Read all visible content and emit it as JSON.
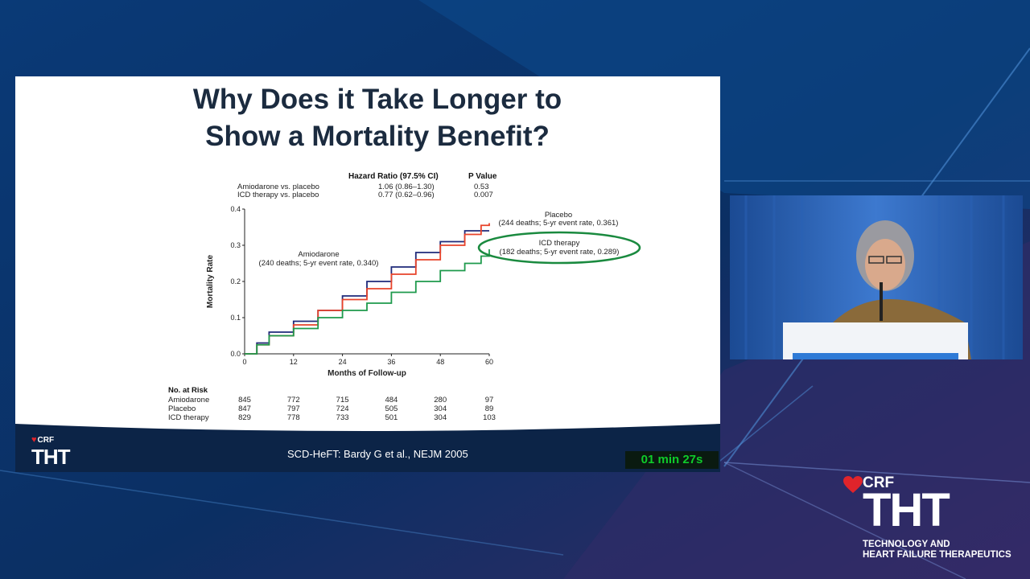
{
  "slide": {
    "title_line1": "Why Does it Take Longer to",
    "title_line2": "Show a Mortality Benefit?",
    "citation": "SCD-HeFT: Bardy G et al., NEJM 2005",
    "timer": "01 min 27s"
  },
  "branding": {
    "small_crf": "CRF",
    "small_tht": "THT",
    "big_crf": "CRF",
    "big_tht": "THT",
    "big_line1": "TECHNOLOGY AND",
    "big_line2": "HEART FAILURE THERAPEUTICS",
    "accent_color": "#e0242b"
  },
  "hazard_table": {
    "col1_header": "Hazard Ratio (97.5% CI)",
    "col2_header": "P Value",
    "rows": [
      {
        "label": "Amiodarone vs. placebo",
        "hr": "1.06 (0.86–1.30)",
        "p": "0.53"
      },
      {
        "label": "ICD therapy vs. placebo",
        "hr": "0.77 (0.62–0.96)",
        "p": "0.007"
      }
    ]
  },
  "chart_data": {
    "type": "line",
    "xlabel": "Months of Follow-up",
    "ylabel": "Mortality Rate",
    "xlim": [
      0,
      60
    ],
    "ylim": [
      0,
      0.4
    ],
    "xticks": [
      "0",
      "12",
      "24",
      "36",
      "48",
      "60"
    ],
    "yticks": [
      "0.0",
      "0.1",
      "0.2",
      "0.3",
      "0.4"
    ],
    "grid": false,
    "series": [
      {
        "name": "Amiodarone",
        "label_line1": "Amiodarone",
        "label_line2": "(240 deaths; 5-yr event rate, 0.340)",
        "color": "#1f2a7a",
        "x": [
          0,
          3,
          6,
          12,
          18,
          24,
          30,
          36,
          42,
          48,
          54,
          60
        ],
        "y": [
          0,
          0.03,
          0.06,
          0.09,
          0.12,
          0.16,
          0.2,
          0.24,
          0.28,
          0.31,
          0.34,
          0.34
        ]
      },
      {
        "name": "Placebo",
        "label_line1": "Placebo",
        "label_line2": "(244 deaths; 5-yr event rate, 0.361)",
        "color": "#e8432a",
        "x": [
          0,
          3,
          6,
          12,
          18,
          24,
          30,
          36,
          42,
          48,
          54,
          58,
          60
        ],
        "y": [
          0,
          0.025,
          0.05,
          0.08,
          0.12,
          0.15,
          0.18,
          0.22,
          0.26,
          0.3,
          0.33,
          0.355,
          0.361
        ]
      },
      {
        "name": "ICD therapy",
        "label_line1": "ICD therapy",
        "label_line2": "(182 deaths; 5-yr event rate, 0.289)",
        "color": "#1e9a4c",
        "x": [
          0,
          3,
          6,
          12,
          18,
          24,
          30,
          36,
          42,
          48,
          54,
          58,
          60
        ],
        "y": [
          0,
          0.025,
          0.05,
          0.07,
          0.1,
          0.12,
          0.14,
          0.17,
          0.2,
          0.23,
          0.25,
          0.27,
          0.289
        ]
      }
    ],
    "risk_table": {
      "title": "No. at Risk",
      "rows": [
        {
          "label": "Amiodarone",
          "values": [
            "845",
            "772",
            "715",
            "484",
            "280",
            "97"
          ]
        },
        {
          "label": "Placebo",
          "values": [
            "847",
            "797",
            "724",
            "505",
            "304",
            "89"
          ]
        },
        {
          "label": "ICD therapy",
          "values": [
            "829",
            "778",
            "733",
            "501",
            "304",
            "103"
          ]
        }
      ]
    }
  }
}
